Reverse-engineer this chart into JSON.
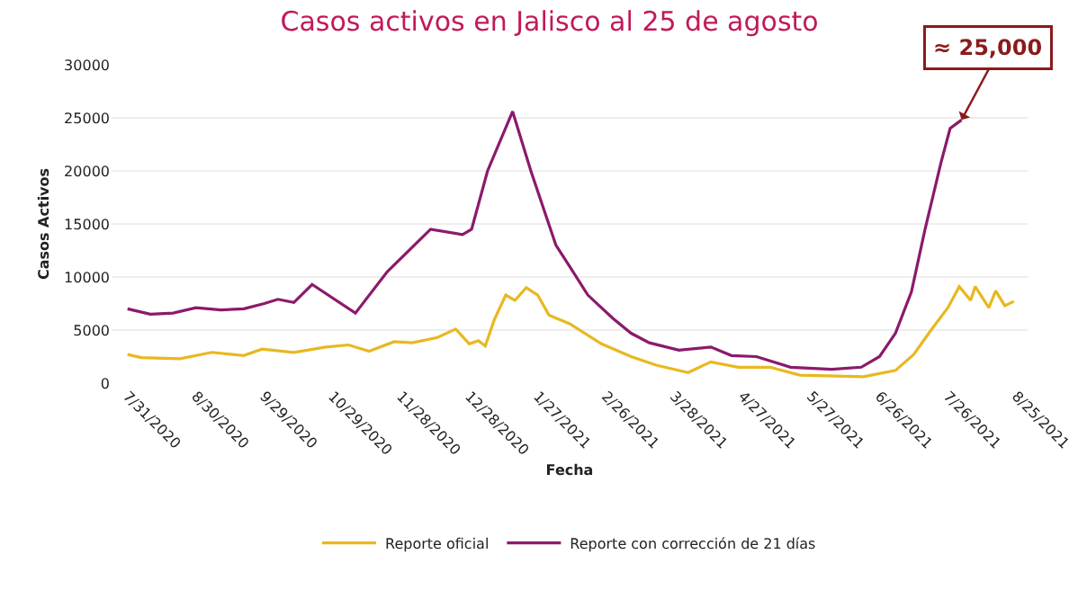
{
  "chart_data": {
    "type": "line",
    "title": "Casos activos en Jalisco al 25 de agosto",
    "xlabel": "Fecha",
    "ylabel": "Casos Activos",
    "xlim": [
      "2020-07-24",
      "2021-08-30"
    ],
    "ylim": [
      0,
      30000
    ],
    "xticks": [
      {
        "value": "2020-07-31",
        "label": "7/31/2020"
      },
      {
        "value": "2020-08-30",
        "label": "8/30/2020"
      },
      {
        "value": "2020-09-29",
        "label": "9/29/2020"
      },
      {
        "value": "2020-10-29",
        "label": "10/29/2020"
      },
      {
        "value": "2020-11-28",
        "label": "11/28/2020"
      },
      {
        "value": "2020-12-28",
        "label": "12/28/2020"
      },
      {
        "value": "2021-01-27",
        "label": "1/27/2021"
      },
      {
        "value": "2021-02-26",
        "label": "2/26/2021"
      },
      {
        "value": "2021-03-28",
        "label": "3/28/2021"
      },
      {
        "value": "2021-04-27",
        "label": "4/27/2021"
      },
      {
        "value": "2021-05-27",
        "label": "5/27/2021"
      },
      {
        "value": "2021-06-26",
        "label": "6/26/2021"
      },
      {
        "value": "2021-07-26",
        "label": "7/26/2021"
      },
      {
        "value": "2021-08-25",
        "label": "8/25/2021"
      }
    ],
    "yticks": [
      0,
      5000,
      10000,
      15000,
      20000,
      25000,
      30000
    ],
    "grid": "y",
    "legend": "bottom",
    "marker": "none",
    "line_style": "solid",
    "annotations": [
      {
        "text": "≈ 25,000",
        "x": "2021-08-01",
        "y": 24800
      }
    ],
    "series": [
      {
        "name": "Reporte oficial",
        "color": "#e8b820",
        "x": [
          "2020-07-31",
          "2020-08-06",
          "2020-08-23",
          "2020-09-06",
          "2020-09-20",
          "2020-09-28",
          "2020-10-12",
          "2020-10-26",
          "2020-11-05",
          "2020-11-14",
          "2020-11-25",
          "2020-12-03",
          "2020-12-14",
          "2020-12-22",
          "2020-12-28",
          "2021-01-01",
          "2021-01-04",
          "2021-01-08",
          "2021-01-13",
          "2021-01-17",
          "2021-01-22",
          "2021-01-27",
          "2021-02-01",
          "2021-02-10",
          "2021-02-24",
          "2021-03-09",
          "2021-03-20",
          "2021-04-03",
          "2021-04-13",
          "2021-04-25",
          "2021-05-09",
          "2021-05-22",
          "2021-06-19",
          "2021-07-03",
          "2021-07-11",
          "2021-07-19",
          "2021-07-26",
          "2021-07-31",
          "2021-08-05",
          "2021-08-07",
          "2021-08-13",
          "2021-08-16",
          "2021-08-20",
          "2021-08-24"
        ],
        "values": [
          2700,
          2400,
          2300,
          2900,
          2600,
          3200,
          2900,
          3400,
          3600,
          3000,
          3900,
          3800,
          4300,
          5100,
          3700,
          4000,
          3500,
          6000,
          8300,
          7800,
          9000,
          8300,
          6400,
          5600,
          3700,
          2500,
          1700,
          1000,
          2000,
          1500,
          1500,
          750,
          600,
          1200,
          2700,
          5100,
          7100,
          9100,
          7800,
          9100,
          7100,
          8700,
          7300,
          7700
        ]
      },
      {
        "name": "Reporte con corrección de 21 días",
        "color": "#8b1a6b",
        "x": [
          "2020-07-31",
          "2020-08-10",
          "2020-08-20",
          "2020-08-30",
          "2020-09-10",
          "2020-09-20",
          "2020-09-29",
          "2020-10-05",
          "2020-10-12",
          "2020-10-20",
          "2020-11-08",
          "2020-11-22",
          "2020-12-11",
          "2020-12-25",
          "2020-12-29",
          "2021-01-05",
          "2021-01-16",
          "2021-01-24",
          "2021-02-04",
          "2021-02-10",
          "2021-02-18",
          "2021-03-01",
          "2021-03-09",
          "2021-03-17",
          "2021-03-30",
          "2021-04-13",
          "2021-04-22",
          "2021-05-03",
          "2021-05-18",
          "2021-06-05",
          "2021-06-18",
          "2021-06-26",
          "2021-07-03",
          "2021-07-10",
          "2021-07-16",
          "2021-07-23",
          "2021-07-27",
          "2021-08-01"
        ],
        "values": [
          7000,
          6500,
          6600,
          7100,
          6900,
          7000,
          7500,
          7900,
          7600,
          9300,
          6600,
          10500,
          14500,
          14000,
          14500,
          20000,
          25600,
          20000,
          13000,
          11000,
          8300,
          6100,
          4700,
          3800,
          3100,
          3400,
          2600,
          2500,
          1500,
          1300,
          1500,
          2500,
          4700,
          8600,
          14500,
          20800,
          24000,
          24800
        ]
      }
    ]
  }
}
